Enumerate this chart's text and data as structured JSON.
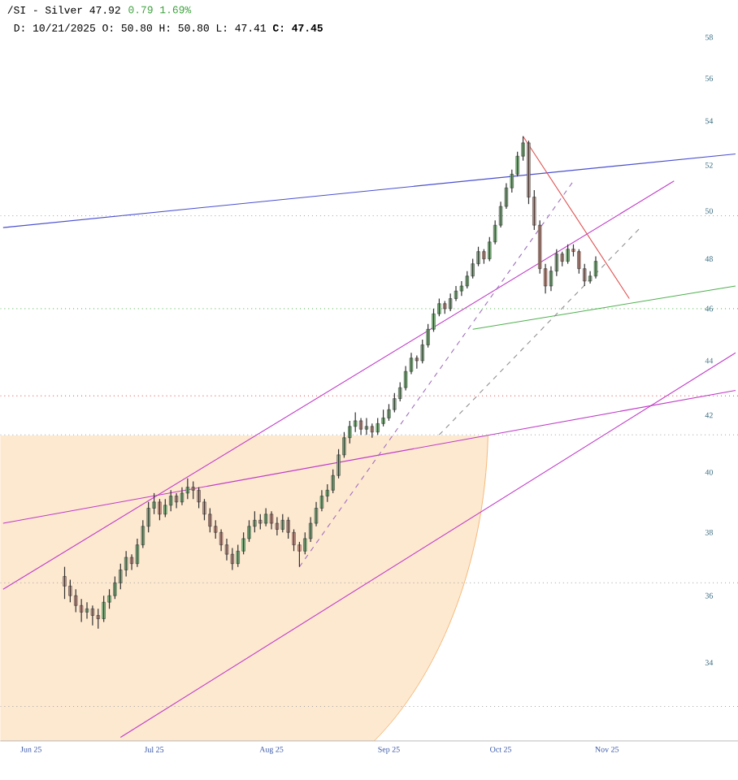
{
  "chart_data": {
    "type": "candlestick",
    "title": "/SI - Silver 47.92",
    "subtitle": "D: 10/21/2025 O: 50.80 H: 50.80 L: 47.41 **C: 47.45**",
    "annotations": [
      "0.79 1.69%"
    ],
    "log": true,
    "ylim": [
      31.8,
      58
    ],
    "yticks": [
      34,
      36,
      38,
      40,
      42,
      44,
      46,
      48,
      50,
      52,
      54,
      56,
      58
    ],
    "categories": [
      null,
      null,
      null,
      null,
      null,
      "Jun 25",
      null,
      null,
      null,
      null,
      null,
      null,
      null,
      null,
      null,
      null,
      null,
      null,
      null,
      null,
      null,
      null,
      null,
      null,
      null,
      null,
      null,
      "Jul 25",
      null,
      null,
      null,
      null,
      null,
      null,
      null,
      null,
      null,
      null,
      null,
      null,
      null,
      null,
      null,
      null,
      null,
      null,
      null,
      null,
      "Aug 25",
      null,
      null,
      null,
      null,
      null,
      null,
      null,
      null,
      null,
      null,
      null,
      null,
      null,
      null,
      null,
      null,
      null,
      null,
      null,
      null,
      "Sep 25",
      null,
      null,
      null,
      null,
      null,
      null,
      null,
      null,
      null,
      null,
      null,
      null,
      null,
      null,
      null,
      null,
      null,
      null,
      null,
      "Oct 25",
      null,
      null,
      null,
      null,
      null,
      null,
      null,
      null,
      null,
      null,
      null,
      null,
      null,
      null,
      null,
      null,
      null,
      null,
      "Nov 25",
      null,
      null,
      null,
      null,
      null,
      null,
      null,
      null,
      null,
      null,
      null,
      null,
      null,
      null,
      null,
      null,
      null,
      null,
      null,
      null,
      null,
      null,
      null
    ],
    "ohlc": [
      null,
      null,
      null,
      null,
      null,
      null,
      null,
      null,
      null,
      null,
      null,
      [
        36.6,
        36.9,
        35.9,
        36.3
      ],
      [
        36.3,
        36.5,
        35.8,
        36.0
      ],
      [
        36.0,
        36.2,
        35.5,
        35.7
      ],
      [
        35.7,
        35.9,
        35.2,
        35.5
      ],
      [
        35.5,
        35.8,
        35.3,
        35.6
      ],
      [
        35.6,
        35.7,
        35.1,
        35.4
      ],
      [
        35.4,
        35.6,
        35.0,
        35.3
      ],
      [
        35.3,
        36.0,
        35.2,
        35.8
      ],
      [
        35.8,
        36.2,
        35.6,
        36.0
      ],
      [
        36.0,
        36.6,
        35.9,
        36.4
      ],
      [
        36.4,
        37.0,
        36.2,
        36.8
      ],
      [
        36.8,
        37.4,
        36.6,
        37.2
      ],
      [
        37.2,
        37.3,
        36.8,
        37.0
      ],
      [
        37.0,
        37.8,
        36.9,
        37.6
      ],
      [
        37.6,
        38.4,
        37.5,
        38.2
      ],
      [
        38.2,
        39.0,
        38.0,
        38.8
      ],
      [
        38.8,
        39.3,
        38.6,
        39.0
      ],
      [
        39.0,
        39.1,
        38.4,
        38.6
      ],
      [
        38.6,
        39.1,
        38.5,
        38.9
      ],
      [
        38.9,
        39.4,
        38.7,
        39.2
      ],
      [
        39.2,
        39.3,
        38.8,
        39.0
      ],
      [
        39.0,
        39.5,
        38.9,
        39.3
      ],
      [
        39.3,
        39.8,
        39.1,
        39.5
      ],
      [
        39.5,
        39.7,
        39.1,
        39.4
      ],
      [
        39.4,
        39.5,
        38.8,
        39.0
      ],
      [
        39.0,
        39.1,
        38.4,
        38.6
      ],
      [
        38.6,
        38.8,
        38.0,
        38.2
      ],
      [
        38.2,
        38.4,
        37.8,
        38.0
      ],
      [
        38.0,
        38.1,
        37.4,
        37.6
      ],
      [
        37.6,
        37.8,
        37.1,
        37.3
      ],
      [
        37.3,
        37.5,
        36.8,
        37.0
      ],
      [
        37.0,
        37.6,
        36.9,
        37.4
      ],
      [
        37.4,
        38.0,
        37.3,
        37.8
      ],
      [
        37.8,
        38.4,
        37.7,
        38.2
      ],
      [
        38.2,
        38.7,
        38.0,
        38.4
      ],
      [
        38.4,
        38.6,
        38.1,
        38.3
      ],
      [
        38.3,
        38.8,
        38.2,
        38.6
      ],
      [
        38.6,
        38.7,
        38.1,
        38.3
      ],
      [
        38.3,
        38.5,
        37.9,
        38.1
      ],
      [
        38.1,
        38.6,
        38.0,
        38.4
      ],
      [
        38.4,
        38.5,
        37.8,
        38.0
      ],
      [
        38.0,
        38.1,
        37.4,
        37.6
      ],
      [
        37.6,
        37.7,
        36.9,
        37.4
      ],
      [
        37.4,
        38.0,
        37.3,
        37.8
      ],
      [
        37.8,
        38.5,
        37.7,
        38.3
      ],
      [
        38.3,
        39.0,
        38.2,
        38.8
      ],
      [
        38.8,
        39.4,
        38.7,
        39.2
      ],
      [
        39.2,
        39.6,
        39.0,
        39.4
      ],
      [
        39.4,
        40.1,
        39.3,
        39.9
      ],
      [
        39.9,
        40.8,
        39.8,
        40.6
      ],
      [
        40.6,
        41.4,
        40.5,
        41.2
      ],
      [
        41.2,
        41.8,
        41.0,
        41.6
      ],
      [
        41.6,
        42.1,
        41.4,
        41.8
      ],
      [
        41.8,
        41.9,
        41.3,
        41.5
      ],
      [
        41.5,
        41.9,
        41.3,
        41.6
      ],
      [
        41.6,
        41.7,
        41.2,
        41.4
      ],
      [
        41.4,
        41.9,
        41.3,
        41.7
      ],
      [
        41.7,
        42.2,
        41.6,
        41.9
      ],
      [
        41.9,
        42.4,
        41.8,
        42.2
      ],
      [
        42.2,
        42.8,
        42.1,
        42.6
      ],
      [
        42.6,
        43.2,
        42.5,
        43.0
      ],
      [
        43.0,
        43.8,
        42.9,
        43.6
      ],
      [
        43.6,
        44.3,
        43.5,
        44.1
      ],
      [
        44.1,
        44.2,
        43.7,
        44.0
      ],
      [
        44.0,
        44.8,
        43.9,
        44.6
      ],
      [
        44.6,
        45.4,
        44.5,
        45.2
      ],
      [
        45.2,
        46.0,
        45.1,
        45.8
      ],
      [
        45.8,
        46.4,
        45.7,
        46.2
      ],
      [
        46.2,
        46.3,
        45.8,
        46.0
      ],
      [
        46.0,
        46.6,
        45.9,
        46.4
      ],
      [
        46.4,
        46.9,
        46.3,
        46.7
      ],
      [
        46.7,
        47.1,
        46.5,
        46.9
      ],
      [
        46.9,
        47.5,
        46.8,
        47.3
      ],
      [
        47.3,
        48.0,
        47.2,
        47.8
      ],
      [
        47.8,
        48.5,
        47.7,
        48.3
      ],
      [
        48.3,
        48.4,
        47.8,
        48.0
      ],
      [
        48.0,
        48.9,
        47.9,
        48.7
      ],
      [
        48.7,
        49.6,
        48.6,
        49.4
      ],
      [
        49.4,
        50.4,
        49.3,
        50.2
      ],
      [
        50.2,
        51.2,
        50.1,
        51.0
      ],
      [
        51.0,
        51.8,
        50.8,
        51.6
      ],
      [
        51.6,
        52.6,
        51.5,
        52.4
      ],
      [
        52.4,
        53.3,
        52.2,
        53.0
      ],
      [
        53.0,
        53.1,
        50.3,
        50.6
      ],
      [
        50.6,
        50.9,
        49.2,
        49.4
      ],
      [
        49.4,
        49.6,
        47.4,
        47.6
      ],
      [
        47.6,
        47.8,
        46.6,
        46.9
      ],
      [
        46.9,
        47.7,
        46.7,
        47.5
      ],
      [
        47.5,
        48.4,
        47.3,
        48.2
      ],
      [
        48.2,
        48.3,
        47.7,
        47.9
      ],
      [
        47.9,
        48.6,
        47.8,
        48.4
      ],
      [
        48.4,
        48.6,
        48.1,
        48.3
      ],
      [
        48.3,
        48.4,
        47.4,
        47.6
      ],
      [
        47.6,
        47.8,
        46.9,
        47.1
      ],
      [
        47.1,
        47.5,
        47.0,
        47.3
      ],
      [
        47.3,
        48.1,
        47.2,
        47.9
      ],
      null,
      null,
      null,
      null,
      null,
      null,
      null,
      null,
      null,
      null,
      null,
      null,
      null,
      null,
      null,
      null,
      null,
      null,
      null,
      null,
      null,
      null,
      null,
      null,
      null
    ],
    "series": [
      {
        "type": "line",
        "color": "#4a4fd0",
        "line_style": "solid",
        "values": [
          49.3,
          null,
          null,
          null,
          null,
          null,
          null,
          null,
          null,
          null,
          null,
          null,
          null,
          null,
          null,
          null,
          null,
          null,
          null,
          null,
          null,
          null,
          null,
          null,
          null,
          null,
          null,
          null,
          null,
          null,
          null,
          null,
          null,
          null,
          null,
          null,
          null,
          null,
          null,
          null,
          null,
          null,
          null,
          null,
          null,
          null,
          null,
          null,
          null,
          null,
          null,
          null,
          null,
          null,
          null,
          null,
          null,
          null,
          null,
          null,
          null,
          null,
          null,
          null,
          null,
          null,
          null,
          null,
          null,
          null,
          null,
          null,
          null,
          null,
          null,
          null,
          null,
          null,
          null,
          null,
          null,
          null,
          null,
          null,
          null,
          null,
          null,
          null,
          null,
          null,
          null,
          null,
          null,
          null,
          null,
          null,
          null,
          null,
          null,
          null,
          null,
          null,
          null,
          null,
          null,
          null,
          null,
          null,
          null,
          null,
          null,
          null,
          null,
          null,
          null,
          null,
          null,
          null,
          null,
          null,
          null,
          null,
          null,
          null,
          null,
          null,
          null,
          null,
          null,
          null,
          null,
          52.5
        ]
      },
      {
        "type": "line",
        "color": "#c03cc8",
        "line_style": "solid",
        "values": [
          36.2,
          null,
          null,
          null,
          null,
          null,
          null,
          null,
          null,
          null,
          null,
          null,
          null,
          null,
          null,
          null,
          null,
          null,
          null,
          null,
          null,
          null,
          null,
          null,
          null,
          null,
          null,
          null,
          null,
          null,
          null,
          null,
          null,
          null,
          null,
          null,
          null,
          null,
          null,
          null,
          null,
          null,
          null,
          null,
          null,
          null,
          null,
          null,
          null,
          null,
          null,
          null,
          null,
          null,
          null,
          null,
          null,
          null,
          null,
          null,
          null,
          null,
          null,
          null,
          null,
          null,
          null,
          null,
          null,
          null,
          null,
          null,
          null,
          null,
          null,
          null,
          null,
          null,
          null,
          null,
          null,
          null,
          null,
          null,
          null,
          null,
          null,
          null,
          null,
          null,
          null,
          null,
          null,
          null,
          null,
          null,
          null,
          null,
          null,
          null,
          null,
          null,
          null,
          null,
          null,
          null,
          null,
          null,
          null,
          null,
          null,
          null,
          null,
          null,
          null,
          null,
          null,
          null,
          null,
          null,
          51.3,
          null,
          null,
          null,
          null,
          null,
          null,
          null,
          null,
          null,
          null,
          null
        ]
      },
      {
        "type": "line",
        "color": "#c03cc8",
        "line_style": "solid",
        "values": [
          38.3,
          null,
          null,
          null,
          null,
          null,
          null,
          null,
          null,
          null,
          null,
          null,
          null,
          null,
          null,
          null,
          null,
          null,
          null,
          null,
          null,
          null,
          null,
          null,
          null,
          null,
          null,
          null,
          null,
          null,
          null,
          null,
          null,
          null,
          null,
          null,
          null,
          null,
          null,
          null,
          null,
          null,
          null,
          null,
          null,
          null,
          null,
          null,
          null,
          null,
          null,
          null,
          null,
          null,
          null,
          null,
          null,
          null,
          null,
          null,
          null,
          null,
          null,
          null,
          null,
          null,
          null,
          null,
          null,
          null,
          null,
          null,
          null,
          null,
          null,
          null,
          null,
          null,
          null,
          null,
          null,
          null,
          null,
          null,
          null,
          null,
          null,
          null,
          null,
          null,
          null,
          null,
          null,
          null,
          null,
          null,
          null,
          null,
          null,
          null,
          null,
          null,
          null,
          null,
          null,
          null,
          null,
          null,
          null,
          null,
          null,
          null,
          null,
          null,
          null,
          null,
          null,
          null,
          null,
          null,
          null,
          null,
          null,
          null,
          null,
          null,
          null,
          null,
          null,
          null,
          null,
          42.9
        ]
      },
      {
        "type": "line",
        "color": "#c03cc8",
        "line_style": "solid",
        "values": [
          null,
          null,
          null,
          null,
          null,
          null,
          null,
          null,
          null,
          null,
          null,
          null,
          null,
          null,
          null,
          null,
          null,
          null,
          null,
          null,
          null,
          31.9,
          null,
          null,
          null,
          null,
          null,
          null,
          null,
          null,
          null,
          null,
          null,
          null,
          null,
          null,
          null,
          null,
          null,
          null,
          null,
          null,
          null,
          null,
          null,
          null,
          null,
          null,
          null,
          null,
          null,
          null,
          null,
          null,
          null,
          null,
          null,
          null,
          null,
          null,
          null,
          null,
          null,
          null,
          null,
          null,
          null,
          null,
          null,
          null,
          null,
          null,
          null,
          null,
          null,
          null,
          null,
          null,
          null,
          null,
          null,
          null,
          null,
          null,
          null,
          null,
          null,
          null,
          null,
          null,
          null,
          null,
          null,
          null,
          null,
          null,
          null,
          null,
          null,
          null,
          null,
          null,
          null,
          null,
          null,
          null,
          null,
          null,
          null,
          null,
          null,
          null,
          null,
          null,
          null,
          null,
          null,
          null,
          null,
          null,
          null,
          null,
          null,
          null,
          null,
          null,
          null,
          null,
          null,
          null,
          null,
          44.3
        ]
      },
      {
        "type": "line",
        "color": "#e05050",
        "line_style": "solid",
        "values": [
          null,
          null,
          null,
          null,
          null,
          null,
          null,
          null,
          null,
          null,
          null,
          null,
          null,
          null,
          null,
          null,
          null,
          null,
          null,
          null,
          null,
          null,
          null,
          null,
          null,
          null,
          null,
          null,
          null,
          null,
          null,
          null,
          null,
          null,
          null,
          null,
          null,
          null,
          null,
          null,
          null,
          null,
          null,
          null,
          null,
          null,
          null,
          null,
          null,
          null,
          null,
          null,
          null,
          null,
          null,
          null,
          null,
          null,
          null,
          null,
          null,
          null,
          null,
          null,
          null,
          null,
          null,
          null,
          null,
          null,
          null,
          null,
          null,
          null,
          null,
          null,
          null,
          null,
          null,
          null,
          null,
          null,
          null,
          null,
          null,
          null,
          null,
          null,
          null,
          null,
          null,
          null,
          null,
          53.3,
          null,
          null,
          null,
          null,
          null,
          null,
          null,
          null,
          null,
          null,
          null,
          null,
          null,
          null,
          null,
          null,
          null,
          null,
          46.4,
          null,
          null,
          null,
          null,
          null,
          null,
          null,
          null,
          null,
          null,
          null,
          null,
          null,
          null,
          null,
          null,
          null,
          null,
          null
        ]
      },
      {
        "type": "line",
        "color": "#50b050",
        "line_style": "solid",
        "values": [
          null,
          null,
          null,
          null,
          null,
          null,
          null,
          null,
          null,
          null,
          null,
          null,
          null,
          null,
          null,
          null,
          null,
          null,
          null,
          null,
          null,
          null,
          null,
          null,
          null,
          null,
          null,
          null,
          null,
          null,
          null,
          null,
          null,
          null,
          null,
          null,
          null,
          null,
          null,
          null,
          null,
          null,
          null,
          null,
          null,
          null,
          null,
          null,
          null,
          null,
          null,
          null,
          null,
          null,
          null,
          null,
          null,
          null,
          null,
          null,
          null,
          null,
          null,
          null,
          null,
          null,
          null,
          null,
          null,
          null,
          null,
          null,
          null,
          null,
          null,
          null,
          null,
          null,
          null,
          null,
          null,
          null,
          null,
          null,
          45.2,
          null,
          null,
          null,
          null,
          null,
          null,
          null,
          null,
          null,
          null,
          null,
          null,
          null,
          null,
          null,
          null,
          null,
          null,
          null,
          null,
          null,
          null,
          null,
          null,
          null,
          null,
          null,
          null,
          null,
          null,
          null,
          null,
          null,
          null,
          null,
          null,
          null,
          null,
          null,
          null,
          null,
          null,
          null,
          null,
          null,
          null,
          46.9
        ]
      },
      {
        "type": "line",
        "color": "#a070c0",
        "line_style": "dashed",
        "values": [
          null,
          null,
          null,
          null,
          null,
          null,
          null,
          null,
          null,
          null,
          null,
          null,
          null,
          null,
          null,
          null,
          null,
          null,
          null,
          null,
          null,
          null,
          null,
          null,
          null,
          null,
          null,
          null,
          null,
          null,
          null,
          null,
          null,
          null,
          null,
          null,
          null,
          null,
          null,
          null,
          null,
          null,
          null,
          null,
          null,
          null,
          null,
          null,
          null,
          null,
          null,
          null,
          null,
          36.9,
          null,
          null,
          null,
          null,
          null,
          null,
          null,
          null,
          null,
          null,
          null,
          null,
          null,
          null,
          null,
          null,
          null,
          null,
          null,
          null,
          null,
          null,
          null,
          null,
          null,
          null,
          null,
          null,
          null,
          null,
          null,
          null,
          null,
          null,
          null,
          null,
          null,
          null,
          null,
          null,
          null,
          null,
          null,
          null,
          null,
          null,
          null,
          null,
          51.3,
          null,
          null,
          null,
          null,
          null,
          null,
          null,
          null,
          null,
          null,
          null,
          null,
          null,
          null,
          null,
          null,
          null,
          null,
          null,
          null,
          null,
          null,
          null,
          null,
          null,
          null,
          null,
          null,
          null
        ]
      },
      {
        "type": "line",
        "color": "#909090",
        "line_style": "dashed",
        "values": [
          null,
          null,
          null,
          null,
          null,
          null,
          null,
          null,
          null,
          null,
          null,
          null,
          null,
          null,
          null,
          null,
          null,
          null,
          null,
          null,
          null,
          null,
          null,
          null,
          null,
          null,
          null,
          null,
          null,
          null,
          null,
          null,
          null,
          null,
          null,
          null,
          null,
          null,
          null,
          null,
          null,
          null,
          null,
          null,
          null,
          null,
          null,
          null,
          null,
          null,
          null,
          null,
          null,
          null,
          null,
          null,
          null,
          null,
          null,
          null,
          null,
          null,
          null,
          null,
          null,
          null,
          null,
          null,
          null,
          null,
          null,
          null,
          null,
          null,
          null,
          null,
          null,
          null,
          41.3,
          null,
          null,
          null,
          null,
          null,
          null,
          null,
          null,
          null,
          null,
          null,
          null,
          null,
          null,
          null,
          null,
          null,
          null,
          null,
          null,
          null,
          null,
          null,
          null,
          null,
          null,
          null,
          null,
          null,
          null,
          null,
          null,
          null,
          null,
          null,
          49.3,
          null,
          null,
          null,
          null,
          null,
          null,
          null,
          null,
          null,
          null,
          null,
          null,
          null,
          null,
          null,
          null,
          null
        ]
      }
    ],
    "ref_lines": [
      {
        "axis": "y",
        "value": 49.8,
        "color": "#a0a0a0",
        "line_style": "dotted"
      },
      {
        "axis": "y",
        "value": 46,
        "color": "#40b040",
        "line_style": "dotted"
      },
      {
        "axis": "y",
        "value": 42.7,
        "color": "#e04040",
        "line_style": "dotted"
      },
      {
        "axis": "y",
        "value": 41.3,
        "color": "#a0a0a0",
        "line_style": "dotted"
      },
      {
        "axis": "y",
        "value": 36.4,
        "color": "#a0a0a0",
        "line_style": "dotted"
      },
      {
        "axis": "y",
        "value": 32.75,
        "color": "#a0a0a0",
        "line_style": "dotted"
      }
    ]
  }
}
